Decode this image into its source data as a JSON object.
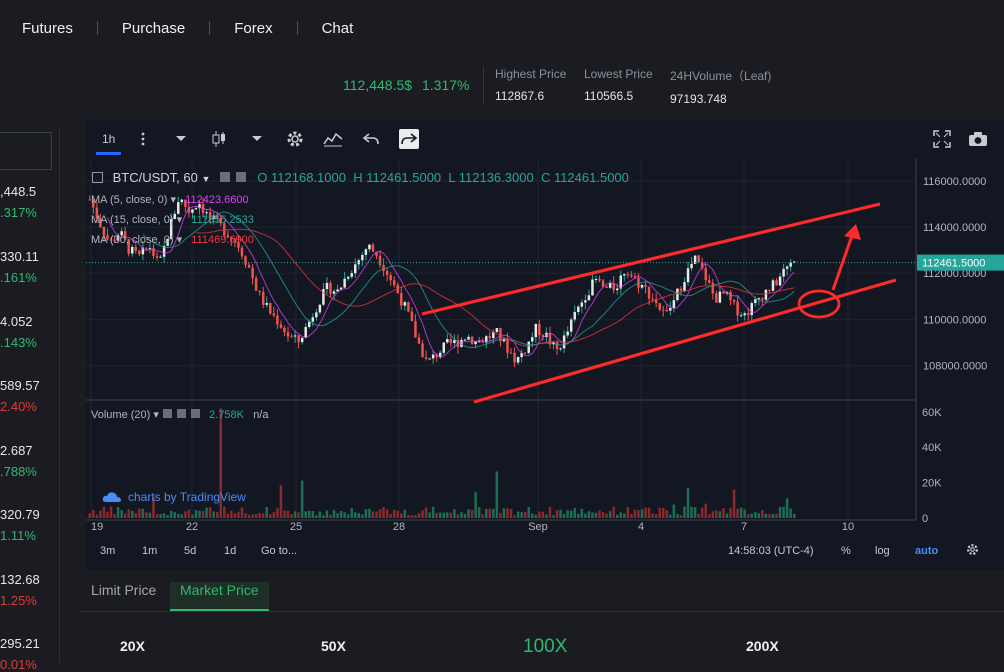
{
  "nav": {
    "items": [
      "Futures",
      "Purchase",
      "Forex",
      "Chat"
    ]
  },
  "ticker": {
    "price": "112,448.5$",
    "change_pct": "1.317%",
    "high_label": "Highest Price",
    "high_value": "112867.6",
    "low_label": "Lowest Price",
    "low_value": "110566.5",
    "volume_label": "24HVolume（Leaf)",
    "volume_value": "97193.748"
  },
  "left_list": [
    {
      "a": ",448.5",
      "b": ".317%",
      "color": "#2fb96f"
    },
    {
      "a": "330.11",
      "b": ".161%",
      "color": "#2fb96f"
    },
    {
      "a": "4.052",
      "b": ".143%",
      "color": "#2fb96f"
    },
    {
      "a": "589.57",
      "b": "2.40%",
      "color": "#e53935"
    },
    {
      "a": "2.687",
      "b": ".788%",
      "color": "#2fb96f"
    },
    {
      "a": "320.79",
      "b": "1.11%",
      "color": "#2fb96f"
    },
    {
      "a": "132.68",
      "b": "1.25%",
      "color": "#e53935"
    },
    {
      "a": "295.21",
      "b": "0.01%",
      "color": "#e53935"
    }
  ],
  "toolbar": {
    "interval": "1h"
  },
  "legend": {
    "symbol": "BTC/USDT, 60",
    "open": "O 112168.1000",
    "high": "H 112461.5000",
    "low": "L 112136.3000",
    "close": "C 112461.5000"
  },
  "ma": [
    {
      "label": "MA (5, close, 0)",
      "value": "112423.6600",
      "color": "#e040fb"
    },
    {
      "label": "MA (15, close, 0)",
      "value": "111855.2533",
      "color": "#26a69a"
    },
    {
      "label": "MA (30, close, 0)",
      "value": "111469.6900",
      "color": "#f23645"
    }
  ],
  "volume": {
    "label": "Volume (20)",
    "value": "2.758K",
    "na": "n/a"
  },
  "tv_logo": "charts by TradingView",
  "price_axis": [
    "116000.0000",
    "114000.0000",
    "112000.0000",
    "110000.0000",
    "108000.0000"
  ],
  "last_price_tag": "112461.5000",
  "volume_axis": [
    "60K",
    "40K",
    "20K",
    "0"
  ],
  "time_axis": [
    "19",
    "22",
    "25",
    "28",
    "Sep",
    "4",
    "7",
    "10"
  ],
  "bottom": {
    "ranges": [
      "3m",
      "1m",
      "5d",
      "1d"
    ],
    "goto": "Go to...",
    "time": "14:58:03 (UTC-4)",
    "pct": "%",
    "log": "log",
    "auto": "auto"
  },
  "order_tabs": {
    "limit": "Limit Price",
    "market": "Market Price"
  },
  "leverage": [
    "20X",
    "50X",
    "100X",
    "200X"
  ],
  "chart_data": {
    "type": "candlestick",
    "title": "BTC/USDT, 60",
    "x_ticks": [
      "19",
      "22",
      "25",
      "28",
      "Sep",
      "4",
      "7",
      "10"
    ],
    "y_range": [
      106500,
      117000
    ],
    "close_path": [
      [
        0,
        115200
      ],
      [
        1,
        114200
      ],
      [
        2,
        113300
      ],
      [
        3,
        113800
      ],
      [
        4,
        113000
      ],
      [
        5,
        112700
      ],
      [
        6,
        113200
      ],
      [
        7,
        112300
      ],
      [
        8,
        113900
      ],
      [
        9,
        115300
      ],
      [
        10,
        114700
      ],
      [
        11,
        115100
      ],
      [
        12,
        114400
      ],
      [
        13,
        114100
      ],
      [
        14,
        113700
      ],
      [
        15,
        113200
      ],
      [
        16,
        112300
      ],
      [
        17,
        111100
      ],
      [
        18,
        110400
      ],
      [
        19,
        109900
      ],
      [
        20,
        109300
      ],
      [
        21,
        109000
      ],
      [
        22,
        109800
      ],
      [
        23,
        110700
      ],
      [
        24,
        111400
      ],
      [
        25,
        111200
      ],
      [
        26,
        112000
      ],
      [
        27,
        112500
      ],
      [
        28,
        113200
      ],
      [
        29,
        112800
      ],
      [
        30,
        112000
      ],
      [
        31,
        111200
      ],
      [
        32,
        110300
      ],
      [
        33,
        109100
      ],
      [
        34,
        108100
      ],
      [
        35,
        108500
      ],
      [
        36,
        108900
      ],
      [
        37,
        109000
      ],
      [
        38,
        109300
      ],
      [
        39,
        109000
      ],
      [
        40,
        109200
      ],
      [
        41,
        109400
      ],
      [
        42,
        108800
      ],
      [
        43,
        108200
      ],
      [
        44,
        108800
      ],
      [
        45,
        109600
      ],
      [
        46,
        109300
      ],
      [
        47,
        108600
      ],
      [
        48,
        109300
      ],
      [
        49,
        110300
      ],
      [
        50,
        111100
      ],
      [
        51,
        111700
      ],
      [
        52,
        111300
      ],
      [
        53,
        111400
      ],
      [
        54,
        112200
      ],
      [
        55,
        111700
      ],
      [
        56,
        111300
      ],
      [
        57,
        110800
      ],
      [
        58,
        110100
      ],
      [
        59,
        110900
      ],
      [
        60,
        111900
      ],
      [
        61,
        112600
      ],
      [
        62,
        111900
      ],
      [
        63,
        110900
      ],
      [
        64,
        111100
      ],
      [
        65,
        110500
      ],
      [
        66,
        110200
      ],
      [
        67,
        110700
      ],
      [
        68,
        111200
      ],
      [
        69,
        111500
      ],
      [
        70,
        112100
      ],
      [
        71,
        112500
      ]
    ],
    "volume_range": [
      0,
      65000
    ]
  }
}
